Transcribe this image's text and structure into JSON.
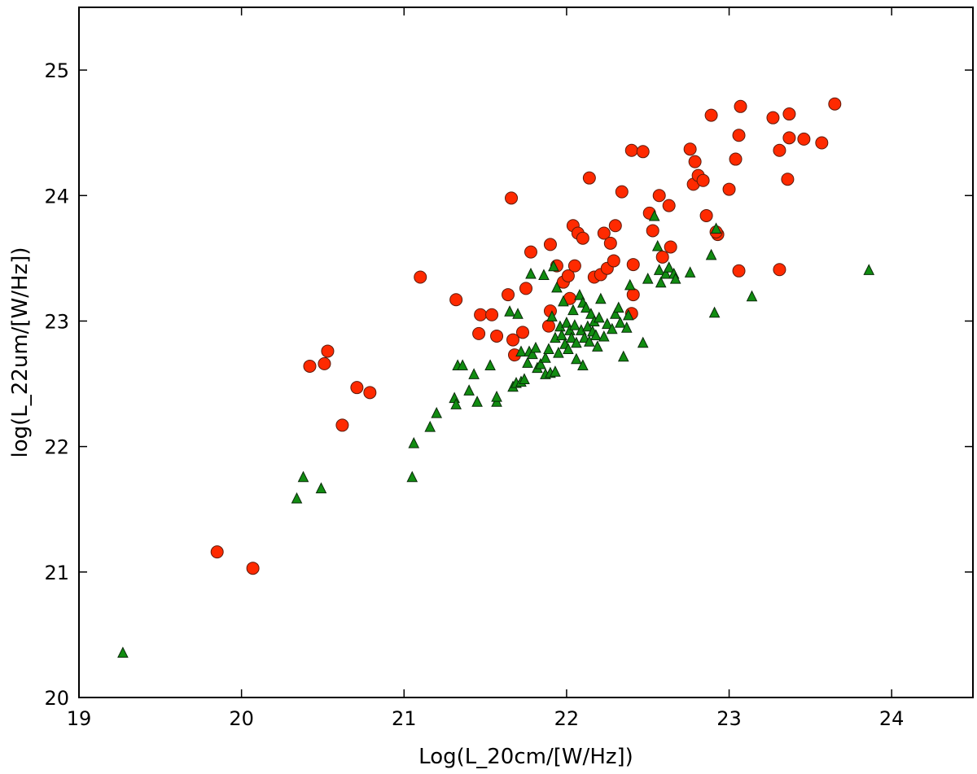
{
  "chart_data": {
    "type": "scatter",
    "title": "",
    "xlabel": "Log(L_20cm/[W/Hz])",
    "ylabel": "log(L_22um/[W/Hz])",
    "xlim": [
      19,
      24.5
    ],
    "ylim": [
      20,
      25.5
    ],
    "xticks": [
      "19",
      "20",
      "21",
      "22",
      "23",
      "24"
    ],
    "yticks": [
      "20",
      "21",
      "22",
      "23",
      "24",
      "25"
    ],
    "grid": false,
    "legend": "none",
    "series": [
      {
        "marker": "circle",
        "color": "#ff2a00",
        "edge_color": "#5a1a0a",
        "points": [
          [
            19.85,
            21.16
          ],
          [
            20.07,
            21.03
          ],
          [
            20.42,
            22.64
          ],
          [
            20.51,
            22.66
          ],
          [
            20.53,
            22.76
          ],
          [
            20.62,
            22.17
          ],
          [
            20.71,
            22.47
          ],
          [
            20.79,
            22.43
          ],
          [
            21.1,
            23.35
          ],
          [
            21.32,
            23.17
          ],
          [
            21.46,
            22.9
          ],
          [
            21.47,
            23.05
          ],
          [
            21.54,
            23.05
          ],
          [
            21.57,
            22.88
          ],
          [
            21.64,
            23.21
          ],
          [
            21.66,
            23.98
          ],
          [
            21.67,
            22.85
          ],
          [
            21.68,
            22.73
          ],
          [
            21.73,
            22.91
          ],
          [
            21.75,
            23.26
          ],
          [
            21.78,
            23.55
          ],
          [
            21.9,
            23.61
          ],
          [
            21.9,
            23.08
          ],
          [
            21.89,
            22.96
          ],
          [
            21.94,
            23.44
          ],
          [
            21.98,
            23.31
          ],
          [
            22.01,
            23.36
          ],
          [
            22.02,
            23.18
          ],
          [
            22.04,
            23.76
          ],
          [
            22.05,
            23.44
          ],
          [
            22.07,
            23.7
          ],
          [
            22.1,
            23.66
          ],
          [
            22.14,
            24.14
          ],
          [
            22.17,
            23.35
          ],
          [
            22.21,
            23.37
          ],
          [
            22.23,
            23.7
          ],
          [
            22.25,
            23.42
          ],
          [
            22.27,
            23.62
          ],
          [
            22.29,
            23.48
          ],
          [
            22.3,
            23.76
          ],
          [
            22.34,
            24.03
          ],
          [
            22.4,
            24.36
          ],
          [
            22.41,
            23.45
          ],
          [
            22.41,
            23.21
          ],
          [
            22.4,
            23.06
          ],
          [
            22.47,
            24.35
          ],
          [
            22.51,
            23.86
          ],
          [
            22.53,
            23.72
          ],
          [
            22.57,
            24.0
          ],
          [
            22.59,
            23.51
          ],
          [
            22.63,
            23.92
          ],
          [
            22.64,
            23.59
          ],
          [
            22.76,
            24.37
          ],
          [
            22.78,
            24.09
          ],
          [
            22.79,
            24.27
          ],
          [
            22.81,
            24.16
          ],
          [
            22.84,
            24.12
          ],
          [
            22.86,
            23.84
          ],
          [
            22.89,
            24.64
          ],
          [
            22.93,
            23.69
          ],
          [
            22.92,
            23.71
          ],
          [
            23.0,
            24.05
          ],
          [
            23.04,
            24.29
          ],
          [
            23.06,
            23.4
          ],
          [
            23.06,
            24.48
          ],
          [
            23.07,
            24.71
          ],
          [
            23.27,
            24.62
          ],
          [
            23.31,
            24.36
          ],
          [
            23.31,
            23.41
          ],
          [
            23.36,
            24.13
          ],
          [
            23.37,
            24.46
          ],
          [
            23.37,
            24.65
          ],
          [
            23.46,
            24.45
          ],
          [
            23.57,
            24.42
          ],
          [
            23.65,
            24.73
          ]
        ]
      },
      {
        "marker": "triangle",
        "color": "#118c11",
        "edge_color": "#0a2a0a",
        "points": [
          [
            19.27,
            20.35
          ],
          [
            20.34,
            21.58
          ],
          [
            20.38,
            21.75
          ],
          [
            20.49,
            21.66
          ],
          [
            21.05,
            21.75
          ],
          [
            21.06,
            22.02
          ],
          [
            21.16,
            22.15
          ],
          [
            21.2,
            22.26
          ],
          [
            21.31,
            22.38
          ],
          [
            21.32,
            22.33
          ],
          [
            21.33,
            22.64
          ],
          [
            21.36,
            22.64
          ],
          [
            21.4,
            22.44
          ],
          [
            21.43,
            22.57
          ],
          [
            21.45,
            22.35
          ],
          [
            21.53,
            22.64
          ],
          [
            21.57,
            22.35
          ],
          [
            21.57,
            22.39
          ],
          [
            21.65,
            23.07
          ],
          [
            21.67,
            22.47
          ],
          [
            21.69,
            22.5
          ],
          [
            21.7,
            23.05
          ],
          [
            21.72,
            22.51
          ],
          [
            21.72,
            22.75
          ],
          [
            21.74,
            22.53
          ],
          [
            21.76,
            22.66
          ],
          [
            21.77,
            22.75
          ],
          [
            21.78,
            23.37
          ],
          [
            21.79,
            22.73
          ],
          [
            21.81,
            22.78
          ],
          [
            21.82,
            22.62
          ],
          [
            21.84,
            22.65
          ],
          [
            21.86,
            23.36
          ],
          [
            21.87,
            22.7
          ],
          [
            21.87,
            22.57
          ],
          [
            21.89,
            22.77
          ],
          [
            21.9,
            22.58
          ],
          [
            21.91,
            23.03
          ],
          [
            21.92,
            23.43
          ],
          [
            21.93,
            22.86
          ],
          [
            21.93,
            22.59
          ],
          [
            21.94,
            23.26
          ],
          [
            21.95,
            22.74
          ],
          [
            21.96,
            22.95
          ],
          [
            21.97,
            22.88
          ],
          [
            21.98,
            23.15
          ],
          [
            21.99,
            22.81
          ],
          [
            22.0,
            22.98
          ],
          [
            22.01,
            22.77
          ],
          [
            22.02,
            22.92
          ],
          [
            22.03,
            22.86
          ],
          [
            22.04,
            23.08
          ],
          [
            22.05,
            22.96
          ],
          [
            22.06,
            22.82
          ],
          [
            22.06,
            22.69
          ],
          [
            22.08,
            23.2
          ],
          [
            22.09,
            22.92
          ],
          [
            22.1,
            23.14
          ],
          [
            22.1,
            22.64
          ],
          [
            22.11,
            22.86
          ],
          [
            22.12,
            23.1
          ],
          [
            22.13,
            22.95
          ],
          [
            22.14,
            22.83
          ],
          [
            22.15,
            23.05
          ],
          [
            22.16,
            22.91
          ],
          [
            22.17,
            22.99
          ],
          [
            22.18,
            22.88
          ],
          [
            22.19,
            22.79
          ],
          [
            22.2,
            23.02
          ],
          [
            22.21,
            23.17
          ],
          [
            22.23,
            22.87
          ],
          [
            22.25,
            22.97
          ],
          [
            22.28,
            22.93
          ],
          [
            22.3,
            23.05
          ],
          [
            22.32,
            23.1
          ],
          [
            22.33,
            22.98
          ],
          [
            22.35,
            22.71
          ],
          [
            22.37,
            22.94
          ],
          [
            22.38,
            23.04
          ],
          [
            22.39,
            23.28
          ],
          [
            22.47,
            22.82
          ],
          [
            22.5,
            23.33
          ],
          [
            22.54,
            23.83
          ],
          [
            22.56,
            23.59
          ],
          [
            22.57,
            23.4
          ],
          [
            22.58,
            23.3
          ],
          [
            22.61,
            23.37
          ],
          [
            22.63,
            23.42
          ],
          [
            22.66,
            23.37
          ],
          [
            22.67,
            23.33
          ],
          [
            22.76,
            23.38
          ],
          [
            22.89,
            23.52
          ],
          [
            22.91,
            23.06
          ],
          [
            22.92,
            23.73
          ],
          [
            23.14,
            23.19
          ],
          [
            23.86,
            23.4
          ]
        ]
      }
    ]
  }
}
